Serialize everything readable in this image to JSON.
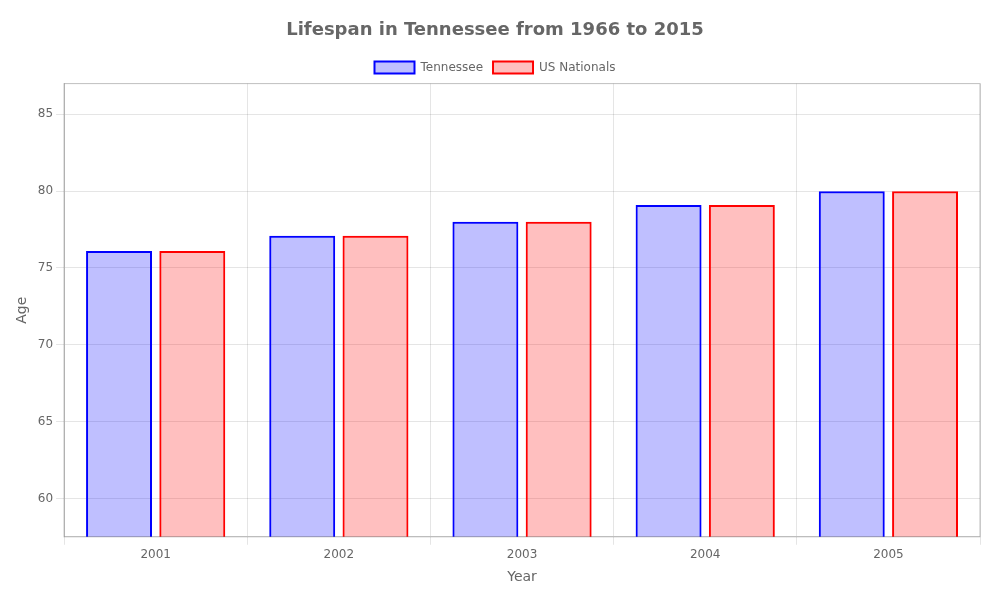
{
  "chart_data": {
    "type": "bar",
    "title": "Lifespan in Tennessee from 1966 to 2015",
    "x_label": "Year",
    "y_label": "Age",
    "categories": [
      "2001",
      "2002",
      "2003",
      "2004",
      "2005"
    ],
    "series": [
      {
        "name": "Tennessee",
        "color": "#0000ff",
        "values": [
          76.1,
          77.1,
          78.0,
          79.1,
          80.0
        ]
      },
      {
        "name": "US Nationals",
        "color": "#ff0000",
        "values": [
          76.1,
          77.1,
          78.0,
          79.1,
          80.0
        ]
      }
    ],
    "ylim": [
      57.5,
      87
    ],
    "yticks": [
      60,
      65,
      70,
      75,
      80,
      85
    ],
    "grid": true,
    "legend": "top"
  }
}
